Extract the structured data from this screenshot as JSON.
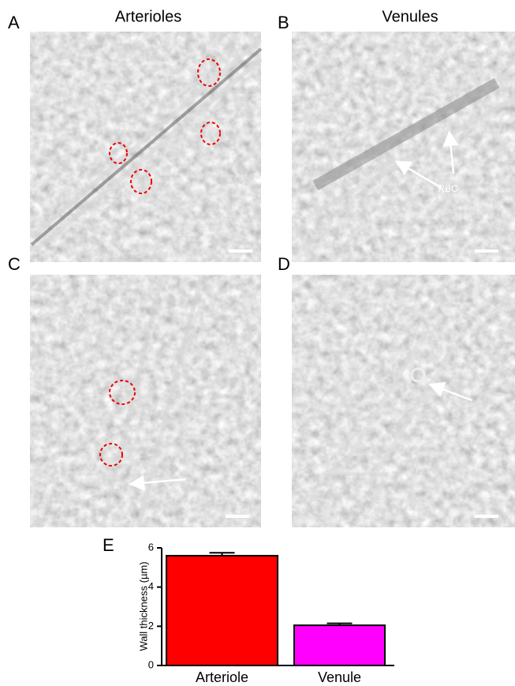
{
  "panels": {
    "labels": [
      "A",
      "B",
      "C",
      "D"
    ],
    "column_titles": [
      "Arterioles",
      "Venules"
    ],
    "annotation": "RBC"
  },
  "chart_data": {
    "type": "bar",
    "panel_label": "E",
    "ylabel": "Wall thickness (µm)",
    "categories": [
      "Arteriole",
      "Venule"
    ],
    "values": [
      5.6,
      2.05
    ],
    "errors": [
      0.15,
      0.1
    ],
    "colors": [
      "#ff0000",
      "#ff00ff"
    ],
    "ylim": [
      0,
      6
    ],
    "yticks": [
      0,
      2,
      4,
      6
    ]
  }
}
